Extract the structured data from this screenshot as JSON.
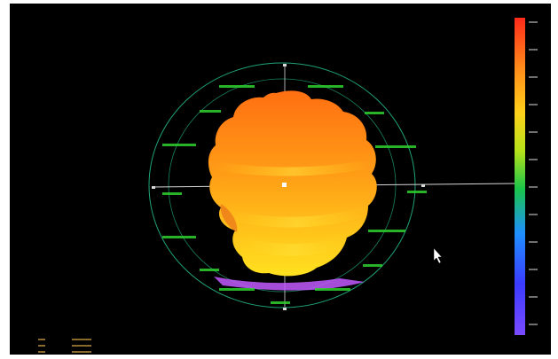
{
  "corner_label": "",
  "colorbar": {
    "stops": [
      "#7a4bff",
      "#3b3bff",
      "#1f8fff",
      "#19c44a",
      "#b6e21a",
      "#ffd11a",
      "#ff8c1a",
      "#ff2a1a"
    ],
    "tick_labels": [
      "",
      "",
      "",
      "",
      "",
      "",
      "",
      "",
      "",
      "",
      "",
      ""
    ]
  },
  "colors": {
    "background": "#000000",
    "ring": "#1fa27a",
    "axis": "#d8d8d8",
    "label": "#2fd12f",
    "highlight": "#c25bff",
    "surface_top": "#ff7a14",
    "surface_bottom": "#ffd21a"
  },
  "orientation_labels": [
    "",
    "",
    "",
    "",
    "",
    "",
    "",
    "",
    "",
    "",
    "",
    "",
    "",
    "",
    ""
  ],
  "readout": {
    "rows": [
      {
        "name": "",
        "value": ""
      },
      {
        "name": "",
        "value": ""
      },
      {
        "name": "",
        "value": ""
      }
    ]
  },
  "cursor_icon": "pointer-arrow-icon"
}
